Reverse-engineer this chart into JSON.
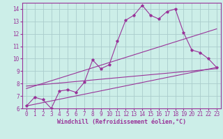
{
  "title": "",
  "xlabel": "Windchill (Refroidissement éolien,°C)",
  "bg_color": "#cceee8",
  "grid_color": "#aacccc",
  "line_color": "#993399",
  "xlim": [
    -0.5,
    23.5
  ],
  "ylim": [
    6,
    14.5
  ],
  "xticks": [
    0,
    1,
    2,
    3,
    4,
    5,
    6,
    7,
    8,
    9,
    10,
    11,
    12,
    13,
    14,
    15,
    16,
    17,
    18,
    19,
    20,
    21,
    22,
    23
  ],
  "yticks": [
    6,
    7,
    8,
    9,
    10,
    11,
    12,
    13,
    14
  ],
  "main_line_x": [
    0,
    1,
    2,
    3,
    4,
    5,
    6,
    7,
    8,
    9,
    10,
    11,
    12,
    13,
    14,
    15,
    16,
    17,
    18,
    19,
    20,
    21,
    22,
    23
  ],
  "main_line_y": [
    6.2,
    6.9,
    6.7,
    6.0,
    7.4,
    7.5,
    7.3,
    8.1,
    9.9,
    9.2,
    9.5,
    11.4,
    13.1,
    13.5,
    14.3,
    13.5,
    13.2,
    13.8,
    14.0,
    12.1,
    10.7,
    10.5,
    10.0,
    9.3
  ],
  "reg_line1_x": [
    0,
    23
  ],
  "reg_line1_y": [
    6.2,
    9.3
  ],
  "reg_line2_x": [
    0,
    23
  ],
  "reg_line2_y": [
    7.6,
    12.4
  ],
  "reg_line3_x": [
    0,
    23
  ],
  "reg_line3_y": [
    7.8,
    9.2
  ],
  "tick_fontsize": 5.5,
  "xlabel_fontsize": 6.0
}
